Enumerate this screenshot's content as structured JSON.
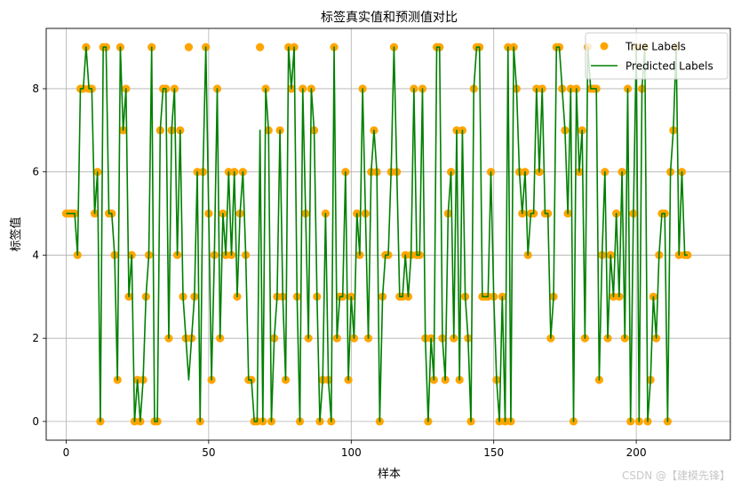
{
  "chart_data": {
    "type": "line",
    "title": "标签真实值和预测值对比",
    "xlabel": "样本",
    "ylabel": "标签值",
    "xlim": [
      -7,
      233
    ],
    "ylim": [
      -0.45,
      9.45
    ],
    "xticks": [
      0,
      50,
      100,
      150,
      200
    ],
    "yticks": [
      0,
      2,
      4,
      6,
      8
    ],
    "grid": true,
    "legend_position": "top-right",
    "series": [
      {
        "name": "True Labels",
        "kind": "scatter",
        "color": "#FFA500",
        "values": [
          5,
          5,
          5,
          5,
          4,
          8,
          8,
          9,
          8,
          8,
          5,
          6,
          0,
          9,
          9,
          5,
          5,
          4,
          1,
          9,
          7,
          8,
          3,
          4,
          0,
          1,
          0,
          1,
          3,
          4,
          9,
          0,
          0,
          7,
          8,
          8,
          2,
          7,
          8,
          4,
          7,
          3,
          2,
          9,
          2,
          3,
          6,
          0,
          6,
          9,
          5,
          1,
          4,
          8,
          2,
          5,
          4,
          6,
          4,
          6,
          3,
          5,
          6,
          4,
          1,
          1,
          0,
          0,
          9,
          0,
          8,
          7,
          0,
          2,
          3,
          7,
          3,
          1,
          9,
          8,
          9,
          3,
          0,
          8,
          5,
          2,
          8,
          7,
          3,
          0,
          1,
          5,
          1,
          0,
          9,
          2,
          3,
          3,
          6,
          1,
          3,
          2,
          5,
          4,
          8,
          5,
          2,
          6,
          7,
          6,
          0,
          3,
          4,
          4,
          6,
          9,
          6,
          3,
          3,
          4,
          3,
          4,
          8,
          4,
          4,
          8,
          2,
          0,
          2,
          1,
          9,
          9,
          2,
          1,
          5,
          6,
          2,
          7,
          1,
          7,
          3,
          2,
          0,
          8,
          9,
          9,
          3,
          3,
          3,
          6,
          3,
          1,
          0,
          3,
          0,
          9,
          0,
          9,
          8,
          6,
          5,
          6,
          4,
          5,
          5,
          8,
          6,
          8,
          5,
          5,
          2,
          3,
          9,
          9,
          8,
          7,
          5,
          8,
          0,
          8,
          6,
          7,
          2,
          9,
          8,
          8,
          8,
          1,
          4,
          6,
          2,
          4,
          3,
          5,
          3,
          6,
          2,
          8,
          0,
          5,
          9,
          0,
          8,
          9,
          0,
          1,
          3,
          2,
          4,
          5,
          5,
          0,
          6,
          7,
          9,
          4,
          6,
          4,
          4
        ]
      },
      {
        "name": "Predicted Labels",
        "kind": "line",
        "color": "#008000",
        "values": [
          5,
          5,
          5,
          5,
          4,
          8,
          8,
          9,
          8,
          8,
          5,
          6,
          0,
          9,
          9,
          5,
          5,
          4,
          1,
          9,
          7,
          8,
          3,
          4,
          0,
          1,
          0,
          1,
          3,
          4,
          9,
          0,
          0,
          7,
          8,
          8,
          2,
          7,
          8,
          4,
          7,
          3,
          2,
          1,
          2,
          3,
          6,
          0,
          6,
          9,
          5,
          1,
          4,
          8,
          2,
          5,
          4,
          6,
          4,
          6,
          3,
          5,
          6,
          4,
          1,
          1,
          0,
          0,
          7,
          0,
          8,
          7,
          0,
          2,
          3,
          7,
          3,
          1,
          9,
          8,
          9,
          3,
          0,
          8,
          5,
          2,
          8,
          7,
          3,
          0,
          1,
          5,
          1,
          0,
          9,
          2,
          3,
          3,
          6,
          1,
          3,
          2,
          5,
          4,
          8,
          5,
          2,
          6,
          7,
          6,
          0,
          3,
          4,
          4,
          6,
          9,
          6,
          3,
          3,
          4,
          3,
          4,
          8,
          4,
          4,
          8,
          2,
          0,
          2,
          1,
          9,
          9,
          2,
          1,
          5,
          6,
          2,
          7,
          1,
          7,
          3,
          2,
          0,
          8,
          9,
          9,
          3,
          3,
          3,
          6,
          3,
          1,
          0,
          3,
          0,
          9,
          0,
          9,
          8,
          6,
          5,
          6,
          4,
          5,
          5,
          8,
          6,
          8,
          5,
          5,
          2,
          3,
          9,
          9,
          8,
          7,
          5,
          8,
          0,
          8,
          6,
          7,
          2,
          9,
          8,
          8,
          8,
          1,
          4,
          6,
          2,
          4,
          3,
          5,
          3,
          6,
          2,
          8,
          0,
          5,
          9,
          0,
          8,
          9,
          0,
          1,
          3,
          2,
          4,
          5,
          5,
          0,
          6,
          7,
          9,
          4,
          6,
          4,
          4
        ]
      }
    ]
  },
  "watermark": "CSDN @【建模先锋】"
}
